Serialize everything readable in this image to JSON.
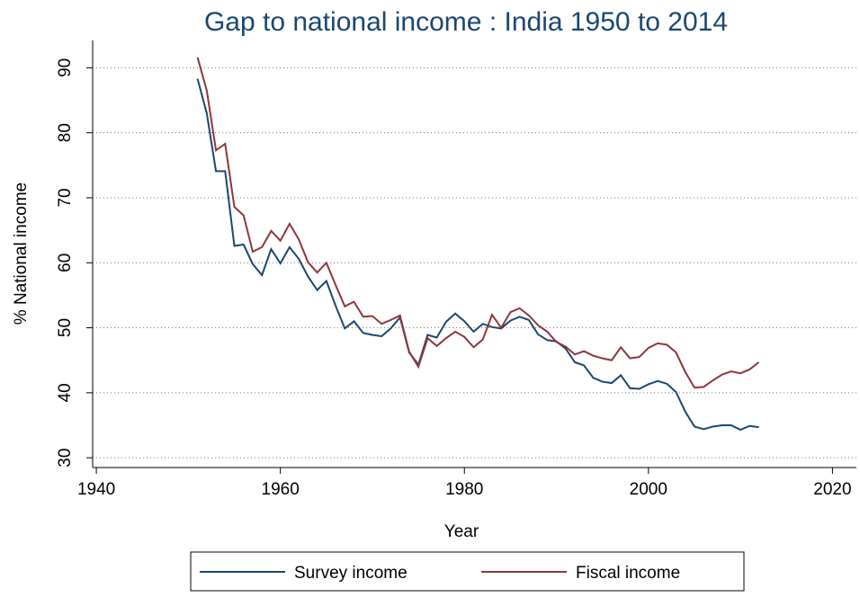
{
  "chart_data": {
    "type": "line",
    "title": "Gap to national income : India 1950 to 2014",
    "xlabel": "Year",
    "ylabel": "% National income",
    "x": [
      1951,
      1952,
      1953,
      1954,
      1955,
      1956,
      1957,
      1958,
      1959,
      1960,
      1961,
      1962,
      1963,
      1964,
      1965,
      1966,
      1967,
      1968,
      1969,
      1970,
      1971,
      1972,
      1973,
      1974,
      1975,
      1976,
      1977,
      1978,
      1979,
      1980,
      1981,
      1982,
      1983,
      1984,
      1985,
      1986,
      1987,
      1988,
      1989,
      1990,
      1991,
      1992,
      1993,
      1994,
      1995,
      1996,
      1997,
      1998,
      1999,
      2000,
      2001,
      2002,
      2003,
      2004,
      2005,
      2006,
      2007,
      2008,
      2009,
      2010,
      2011,
      2012
    ],
    "series": [
      {
        "name": "Survey income",
        "color": "#1a476f",
        "values": [
          88.3,
          83,
          74.1,
          74.1,
          62.6,
          62.8,
          59.8,
          58.1,
          62.1,
          59.9,
          62.4,
          60.6,
          57.9,
          55.8,
          57.2,
          53.4,
          49.9,
          51,
          49.2,
          48.9,
          48.7,
          49.9,
          51.6,
          46.2,
          44.3,
          48.9,
          48.5,
          50.9,
          52.2,
          51,
          49.4,
          50.6,
          50.1,
          49.9,
          51.1,
          51.7,
          51.2,
          49,
          48.1,
          47.9,
          46.8,
          44.7,
          44.2,
          42.3,
          41.7,
          41.5,
          42.7,
          40.7,
          40.6,
          41.3,
          41.8,
          41.4,
          40.1,
          37.1,
          34.8,
          34.4,
          34.8,
          35,
          35,
          34.3,
          34.9,
          34.7
        ]
      },
      {
        "name": "Fiscal income",
        "color": "#90353b",
        "values": [
          91.6,
          86.5,
          77.3,
          78.3,
          68.6,
          67.3,
          61.7,
          62.4,
          64.9,
          63.4,
          66,
          63.6,
          60.1,
          58.5,
          60,
          56.6,
          53.3,
          54,
          51.7,
          51.8,
          50.6,
          51.2,
          51.9,
          46.3,
          44,
          48.4,
          47.2,
          48.4,
          49.4,
          48.6,
          47,
          48.2,
          52,
          50,
          52.4,
          53,
          51.9,
          50.4,
          49.4,
          47.8,
          47.1,
          45.9,
          46.4,
          45.7,
          45.3,
          45,
          47,
          45.3,
          45.5,
          46.9,
          47.6,
          47.4,
          46.2,
          43.2,
          40.8,
          40.9,
          41.9,
          42.8,
          43.3,
          43,
          43.6,
          44.7
        ]
      }
    ],
    "xlim": [
      1939.6,
      2022.6
    ],
    "ylim": [
      28.5,
      94.2
    ],
    "xticks": [
      1940,
      1960,
      1980,
      2000,
      2020
    ],
    "yticks": [
      30,
      40,
      50,
      60,
      70,
      80,
      90
    ],
    "grid": true,
    "legend": "bottom"
  }
}
